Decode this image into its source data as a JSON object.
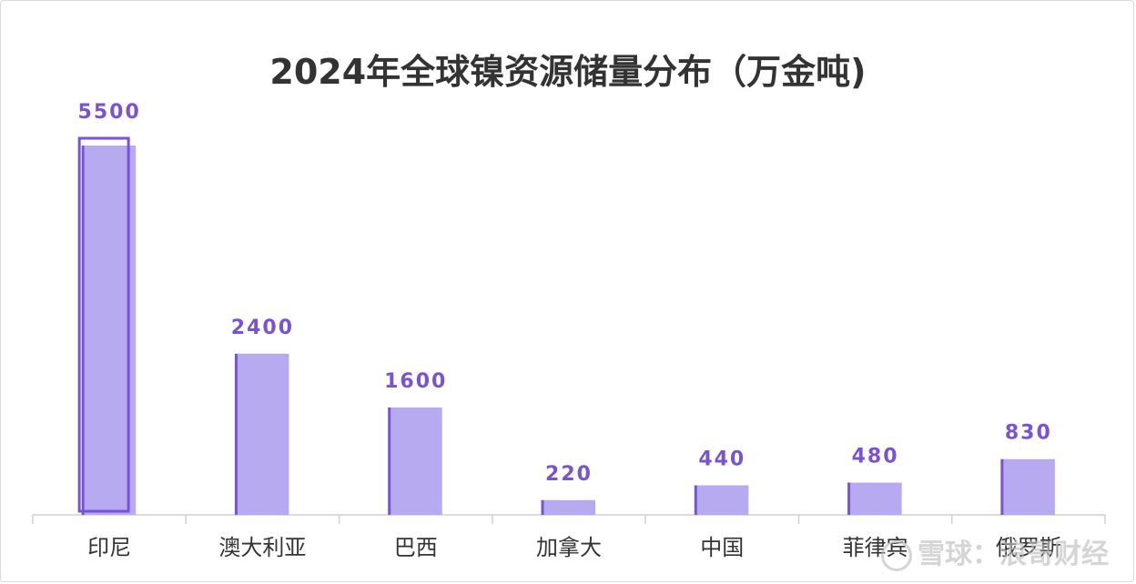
{
  "chart_data": {
    "type": "bar",
    "title": "2024年全球镍资源储量分布（万金吨)",
    "categories": [
      "印尼",
      "澳大利亚",
      "巴西",
      "加拿大",
      "中国",
      "菲律宾",
      "俄罗斯"
    ],
    "values": [
      5500,
      2400,
      1600,
      220,
      440,
      480,
      830
    ],
    "ylim": [
      0,
      5500
    ],
    "grid": false,
    "legend": "none",
    "bar_color": "#b7aaf0",
    "highlight_outline_color": "#7a52d6",
    "label_color": "#7a52d6",
    "axis_color": "#cfcfd6"
  },
  "watermark": {
    "text": "雪球：浪哥财经"
  }
}
